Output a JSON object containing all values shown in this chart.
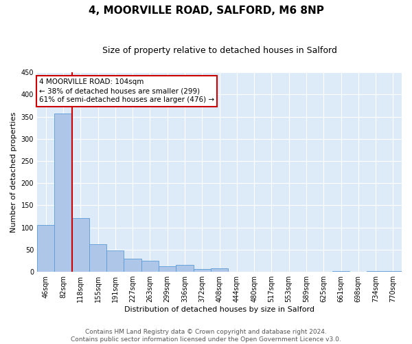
{
  "title": "4, MOORVILLE ROAD, SALFORD, M6 8NP",
  "subtitle": "Size of property relative to detached houses in Salford",
  "xlabel": "Distribution of detached houses by size in Salford",
  "ylabel": "Number of detached properties",
  "bar_labels": [
    "46sqm",
    "82sqm",
    "118sqm",
    "155sqm",
    "191sqm",
    "227sqm",
    "263sqm",
    "299sqm",
    "336sqm",
    "372sqm",
    "408sqm",
    "444sqm",
    "480sqm",
    "517sqm",
    "553sqm",
    "589sqm",
    "625sqm",
    "661sqm",
    "698sqm",
    "734sqm",
    "770sqm"
  ],
  "bar_values": [
    105,
    357,
    121,
    62,
    49,
    30,
    25,
    13,
    16,
    7,
    8,
    0,
    0,
    0,
    0,
    0,
    0,
    1,
    0,
    1,
    2
  ],
  "bar_color": "#aec6e8",
  "bar_edgecolor": "#5b9bd5",
  "ylim": [
    0,
    450
  ],
  "yticks": [
    0,
    50,
    100,
    150,
    200,
    250,
    300,
    350,
    400,
    450
  ],
  "vline_x_idx": 2,
  "vline_color": "#cc0000",
  "annotation_text": "4 MOORVILLE ROAD: 104sqm\n← 38% of detached houses are smaller (299)\n61% of semi-detached houses are larger (476) →",
  "annotation_box_edgecolor": "#cc0000",
  "footer_line1": "Contains HM Land Registry data © Crown copyright and database right 2024.",
  "footer_line2": "Contains public sector information licensed under the Open Government Licence v3.0.",
  "bg_color": "#ddeaf8",
  "grid_color": "#ffffff",
  "title_fontsize": 11,
  "subtitle_fontsize": 9,
  "axis_label_fontsize": 8,
  "tick_fontsize": 7,
  "annotation_fontsize": 7.5,
  "footer_fontsize": 6.5
}
